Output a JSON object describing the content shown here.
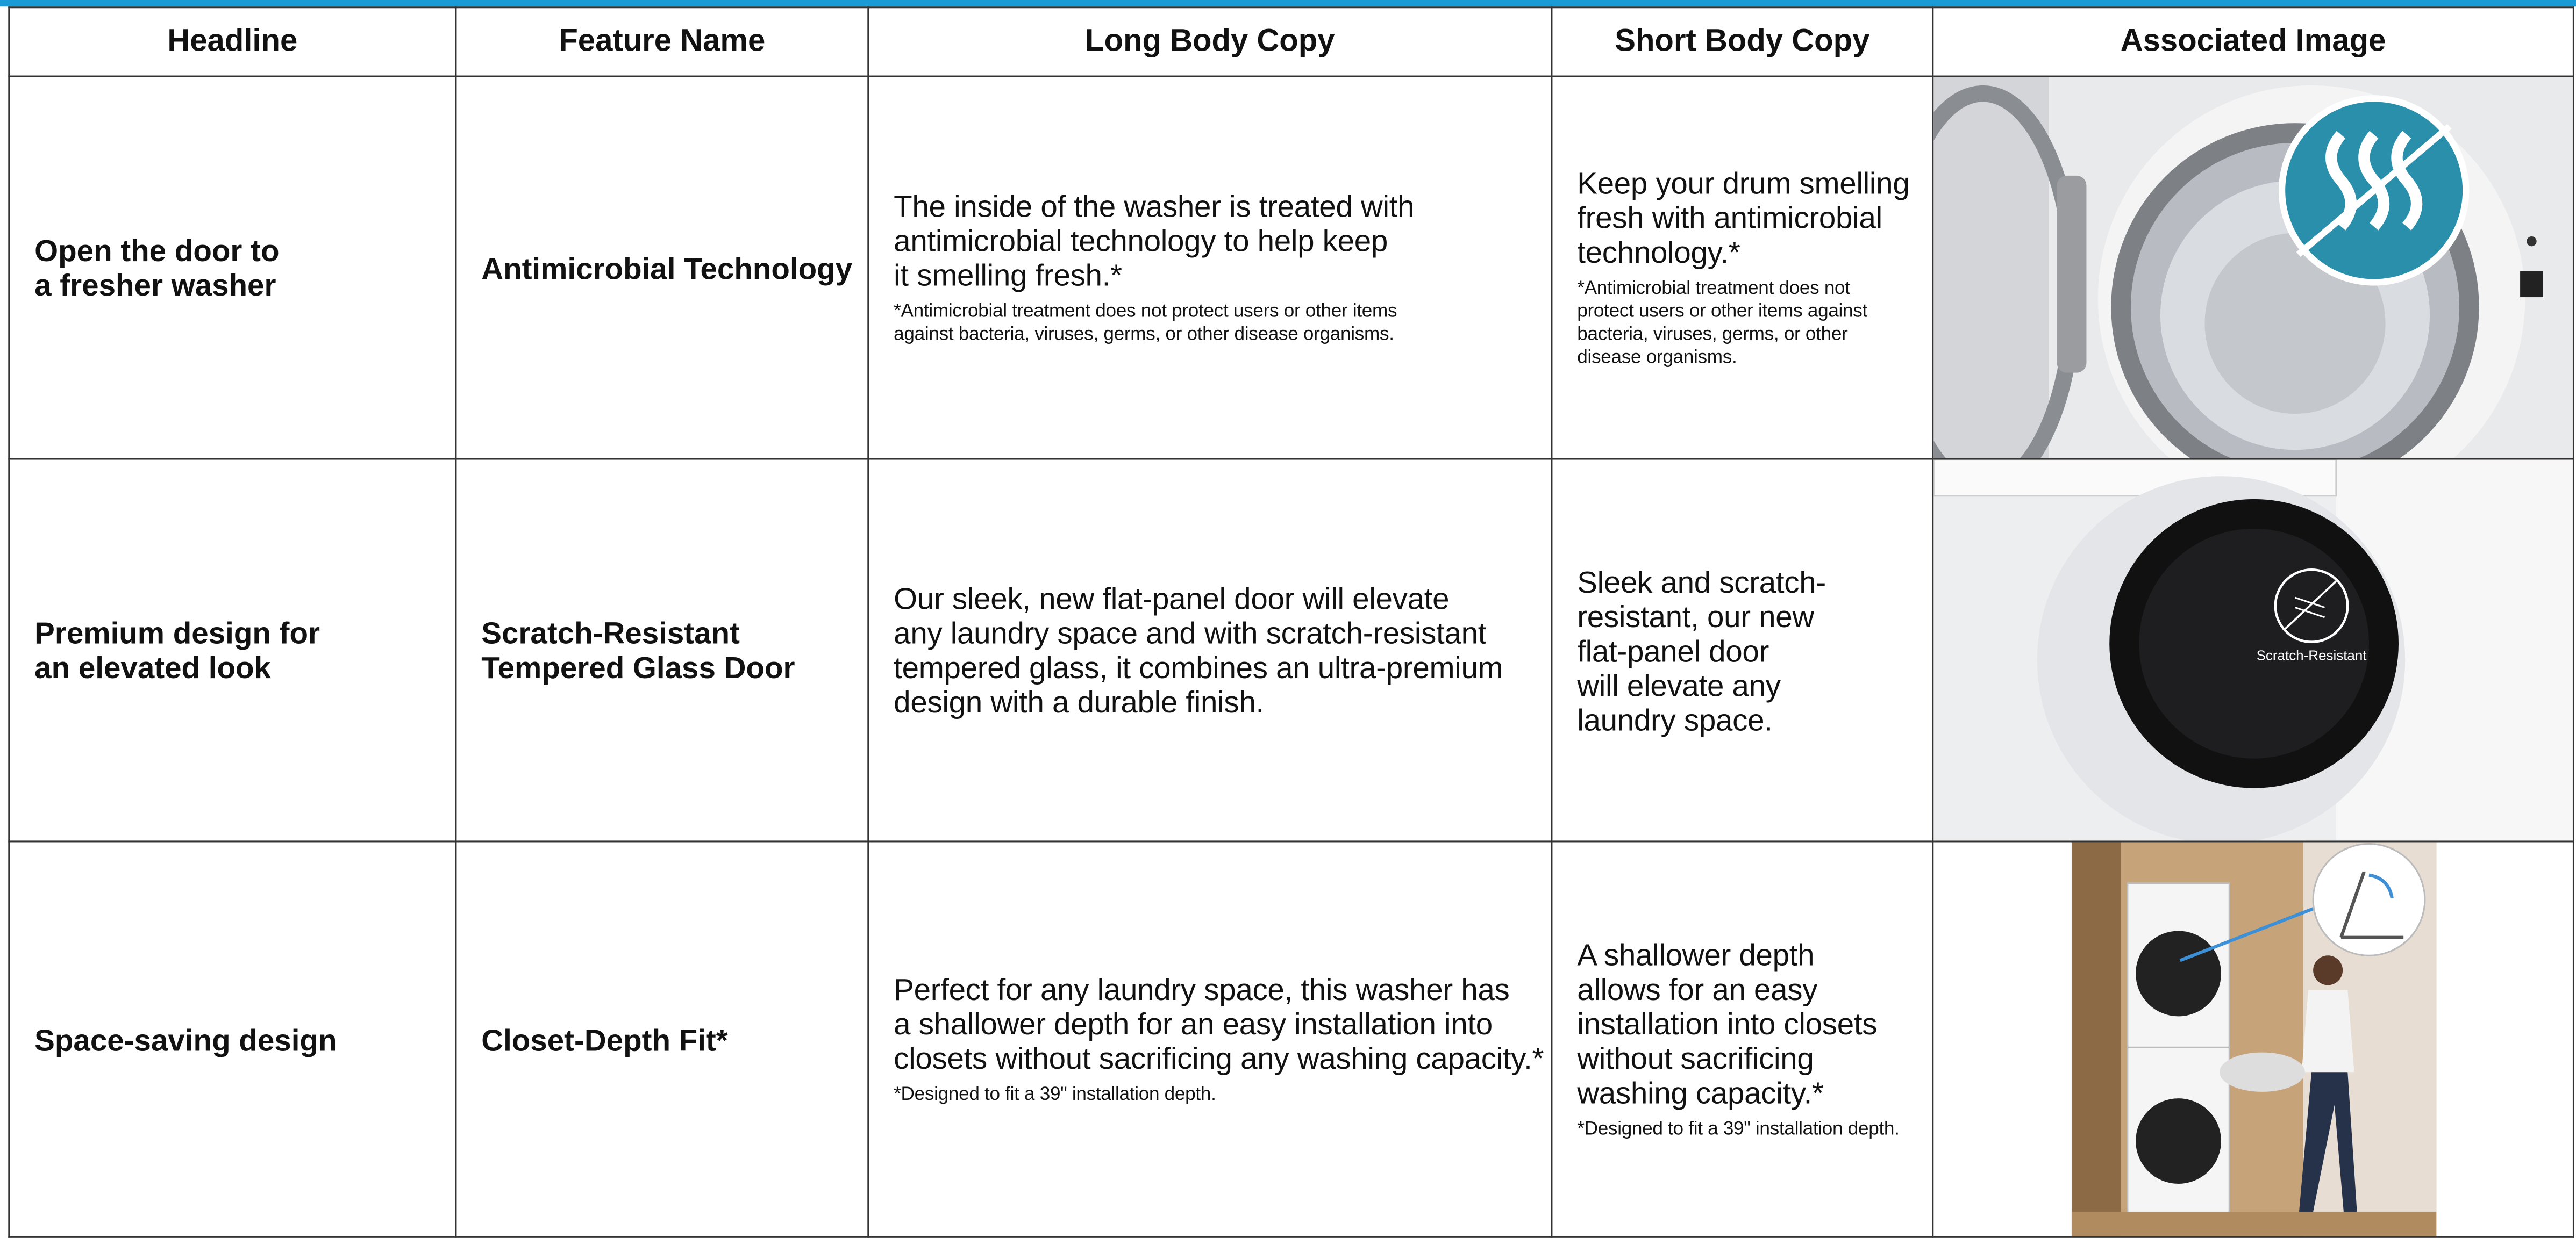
{
  "table": {
    "header": [
      "Headline",
      "Feature Name",
      "Long Body Copy",
      "Short Body Copy",
      "Associated Image"
    ],
    "rows": [
      {
        "headline": [
          "Open the door to",
          "a fresher washer"
        ],
        "feature": [
          "Antimicrobial Technology"
        ],
        "long": [
          "The inside of the washer is treated with",
          "antimicrobial technology to help keep",
          "it smelling fresh.*"
        ],
        "long_note": [
          "*Antimicrobial treatment does not protect users or other items",
          "against bacteria, viruses, germs, or other disease organisms."
        ],
        "short": [
          "Keep your drum smelling",
          "fresh with antimicrobial",
          "technology.*"
        ],
        "short_note": [
          "*Antimicrobial treatment does not",
          "protect users or other items against",
          "bacteria, viruses, germs, or other",
          "disease organisms."
        ]
      },
      {
        "headline": [
          "Premium design for",
          "an elevated look"
        ],
        "feature": [
          "Scratch-Resistant",
          "Tempered Glass Door"
        ],
        "long": [
          "Our sleek, new flat-panel door will elevate",
          "any laundry space and with scratch-resistant",
          "tempered glass, it combines an ultra-premium",
          "design with a durable finish."
        ],
        "long_note": [],
        "short": [
          "Sleek and scratch-",
          "resistant, our new",
          "flat-panel door",
          "will elevate any",
          "laundry space."
        ],
        "short_note": [],
        "image_label": "Scratch-Resistant"
      },
      {
        "headline": [
          "Space-saving design"
        ],
        "feature": [
          "Closet-Depth Fit*"
        ],
        "long": [
          "Perfect for any laundry space, this washer has",
          "a shallower depth for an easy installation into",
          "closets without sacrificing any washing capacity.*"
        ],
        "long_note": [
          "*Designed to fit a 39\" installation depth."
        ],
        "short": [
          "A shallower depth",
          "allows for an easy",
          "installation into closets",
          "without sacrificing",
          "washing capacity.*"
        ],
        "short_note": [
          "*Designed to fit a 39\" installation depth."
        ]
      }
    ]
  }
}
